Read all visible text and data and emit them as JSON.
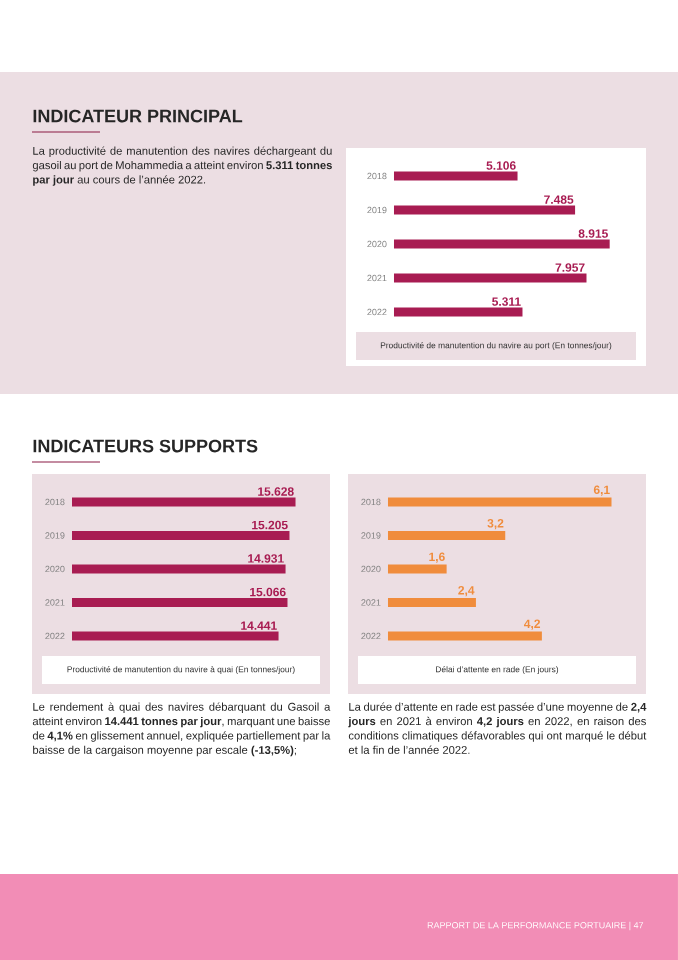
{
  "chart_data": [
    {
      "type": "other",
      "title": "INDICATEUR PRINCIPAL",
      "annotations": [
        "La productivité de manutention des navires déchargeant du gasoil au port de Mohammedia a atteint environ **5.311 tonnes par jour** au cours de l’année 2022."
      ]
    },
    {
      "type": "bar",
      "orientation": "horizontal",
      "categories": [
        "2018",
        "2019",
        "2020",
        "2021",
        "2022"
      ],
      "values": [
        5106,
        7485,
        8915,
        7957,
        5311
      ],
      "value_labels": [
        "5.106",
        "7.485",
        "8.915",
        "7.957",
        "5.311"
      ],
      "color": "#a81c52",
      "tick_labels": "y",
      "xlabel": "Productivité de manutention du navire au port (En tonnes/jour)"
    },
    {
      "type": "bar",
      "orientation": "horizontal",
      "title": "INDICATEURS SUPPORTS",
      "annotations": [
        "Le rendement à quai des navires débarquant du Gasoil a atteint environ **14.441 tonnes par jour**, marquant une baisse de **4,1%** en glissement annuel, expliquée partiellement par la baisse de la cargaison moyenne par escale **(-13,5%)**;"
      ],
      "categories": [
        "2018",
        "2019",
        "2020",
        "2021",
        "2022"
      ],
      "values": [
        15628,
        15205,
        14931,
        15066,
        14441
      ],
      "value_labels": [
        "15.628",
        "15.205",
        "14.931",
        "15.066",
        "14.441"
      ],
      "color": "#a81c52",
      "tick_labels": "y",
      "xlabel": "Productivité de manutention du navire à quai (En tonnes/jour)"
    },
    {
      "type": "bar",
      "orientation": "horizontal",
      "annotations": [
        "La durée d’attente en rade est passée d’une moyenne de **2,4 jours** en 2021 à environ **4,2 jours** en 2022, en raison des conditions climatiques défavorables qui ont marqué le début et la fin de l’année 2022.",
        "RAPPORT DE LA PERFORMANCE PORTUAIRE | 47"
      ],
      "categories": [
        "2018",
        "2019",
        "2020",
        "2021",
        "2022"
      ],
      "values": [
        6.1,
        3.2,
        1.6,
        2.4,
        4.2
      ],
      "value_labels": [
        "6,1",
        "3,2",
        "1,6",
        "2,4",
        "4,2"
      ],
      "color": "#f08c3c",
      "tick_labels": "y",
      "xlabel": "Délai d’attente en rade (En jours)"
    }
  ]
}
